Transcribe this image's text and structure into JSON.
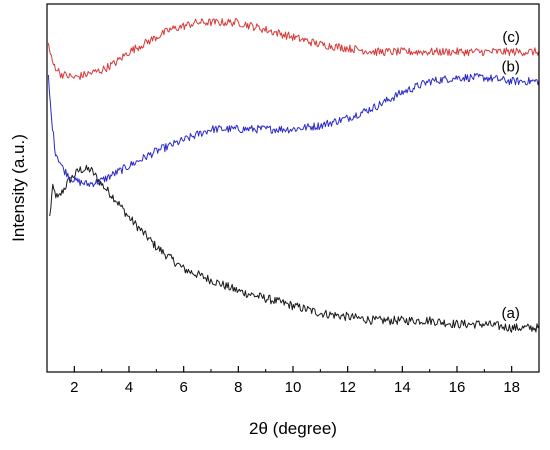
{
  "chart_data": {
    "type": "line",
    "title": "",
    "xlabel": "2θ (degree)",
    "ylabel": "Intensity (a.u.)",
    "xlim": [
      1,
      19
    ],
    "xticks": [
      2,
      4,
      6,
      8,
      10,
      12,
      14,
      16,
      18
    ],
    "yticks_shown": false,
    "grid": false,
    "legend": "none",
    "series": [
      {
        "name": "(a)",
        "color": "#1a1a1a",
        "points": [
          [
            1.1,
            0.42
          ],
          [
            1.2,
            0.5
          ],
          [
            1.4,
            0.47
          ],
          [
            1.8,
            0.52
          ],
          [
            2.2,
            0.55
          ],
          [
            2.6,
            0.55
          ],
          [
            3.0,
            0.51
          ],
          [
            3.5,
            0.47
          ],
          [
            4.0,
            0.42
          ],
          [
            4.5,
            0.38
          ],
          [
            5.0,
            0.34
          ],
          [
            5.5,
            0.31
          ],
          [
            6.0,
            0.28
          ],
          [
            7.0,
            0.25
          ],
          [
            8.0,
            0.22
          ],
          [
            9.0,
            0.2
          ],
          [
            10.0,
            0.18
          ],
          [
            11.0,
            0.16
          ],
          [
            12.0,
            0.15
          ],
          [
            13.0,
            0.14
          ],
          [
            14.0,
            0.14
          ],
          [
            15.0,
            0.14
          ],
          [
            16.0,
            0.13
          ],
          [
            17.0,
            0.13
          ],
          [
            18.0,
            0.12
          ],
          [
            19.0,
            0.12
          ]
        ]
      },
      {
        "name": "(b)",
        "color": "#2b2bc8",
        "points": [
          [
            1.05,
            0.8
          ],
          [
            1.15,
            0.7
          ],
          [
            1.3,
            0.6
          ],
          [
            1.6,
            0.55
          ],
          [
            2.0,
            0.52
          ],
          [
            2.5,
            0.51
          ],
          [
            3.0,
            0.52
          ],
          [
            3.5,
            0.54
          ],
          [
            4.0,
            0.56
          ],
          [
            5.0,
            0.6
          ],
          [
            6.0,
            0.63
          ],
          [
            7.0,
            0.66
          ],
          [
            8.0,
            0.66
          ],
          [
            9.0,
            0.66
          ],
          [
            10.0,
            0.66
          ],
          [
            11.0,
            0.67
          ],
          [
            12.0,
            0.69
          ],
          [
            13.0,
            0.72
          ],
          [
            14.0,
            0.76
          ],
          [
            15.0,
            0.79
          ],
          [
            16.0,
            0.8
          ],
          [
            17.0,
            0.8
          ],
          [
            18.0,
            0.79
          ],
          [
            19.0,
            0.79
          ]
        ]
      },
      {
        "name": "(c)",
        "color": "#d63a3a",
        "points": [
          [
            1.05,
            0.89
          ],
          [
            1.2,
            0.84
          ],
          [
            1.5,
            0.81
          ],
          [
            2.0,
            0.8
          ],
          [
            2.5,
            0.81
          ],
          [
            3.0,
            0.82
          ],
          [
            3.5,
            0.84
          ],
          [
            4.0,
            0.87
          ],
          [
            4.5,
            0.89
          ],
          [
            5.0,
            0.91
          ],
          [
            5.5,
            0.93
          ],
          [
            6.0,
            0.94
          ],
          [
            6.5,
            0.95
          ],
          [
            7.0,
            0.95
          ],
          [
            7.5,
            0.95
          ],
          [
            8.0,
            0.95
          ],
          [
            9.0,
            0.93
          ],
          [
            10.0,
            0.91
          ],
          [
            11.0,
            0.89
          ],
          [
            12.0,
            0.88
          ],
          [
            13.0,
            0.87
          ],
          [
            14.0,
            0.87
          ],
          [
            15.0,
            0.87
          ],
          [
            16.0,
            0.87
          ],
          [
            17.0,
            0.87
          ],
          [
            18.0,
            0.87
          ],
          [
            19.0,
            0.87
          ]
        ]
      }
    ]
  }
}
